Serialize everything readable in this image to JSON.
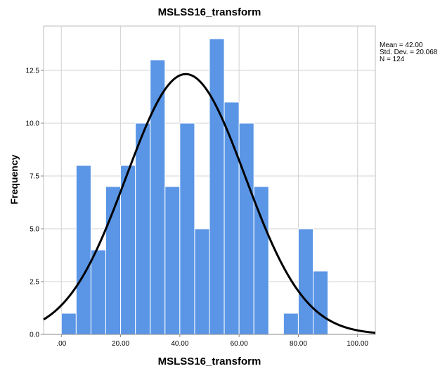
{
  "chart_data": {
    "type": "bar",
    "title": "MSLSS16_transform",
    "xlabel": "MSLSS16_transform",
    "ylabel": "Frequency",
    "x_ticks": [
      ".00",
      "20.00",
      "40.00",
      "60.00",
      "80.00",
      "100.00"
    ],
    "y_ticks": [
      "0.0",
      "2.5",
      "5.0",
      "7.5",
      "10.0",
      "12.5"
    ],
    "xlim": [
      -6,
      106
    ],
    "ylim": [
      0,
      14.6
    ],
    "bin_width": 5,
    "bins": [
      {
        "start": 0,
        "count": 1
      },
      {
        "start": 5,
        "count": 8
      },
      {
        "start": 10,
        "count": 4
      },
      {
        "start": 15,
        "count": 7
      },
      {
        "start": 20,
        "count": 8
      },
      {
        "start": 25,
        "count": 10
      },
      {
        "start": 30,
        "count": 13
      },
      {
        "start": 35,
        "count": 7
      },
      {
        "start": 40,
        "count": 10
      },
      {
        "start": 45,
        "count": 5
      },
      {
        "start": 50,
        "count": 14
      },
      {
        "start": 55,
        "count": 11
      },
      {
        "start": 60,
        "count": 10
      },
      {
        "start": 65,
        "count": 7
      },
      {
        "start": 70,
        "count": 0
      },
      {
        "start": 75,
        "count": 1
      },
      {
        "start": 80,
        "count": 5
      },
      {
        "start": 85,
        "count": 3
      }
    ],
    "normal_curve": {
      "mean": 42.0,
      "sd": 20.068,
      "n": 124
    },
    "stats_text": [
      "Mean = 42.00",
      "Std. Dev. = 20.068",
      "N = 124"
    ],
    "grid": true,
    "colors": {
      "bar": "#5b96e6",
      "bar_edge": "#ffffff",
      "curve": "#000000",
      "grid": "#d3d3d3"
    }
  }
}
